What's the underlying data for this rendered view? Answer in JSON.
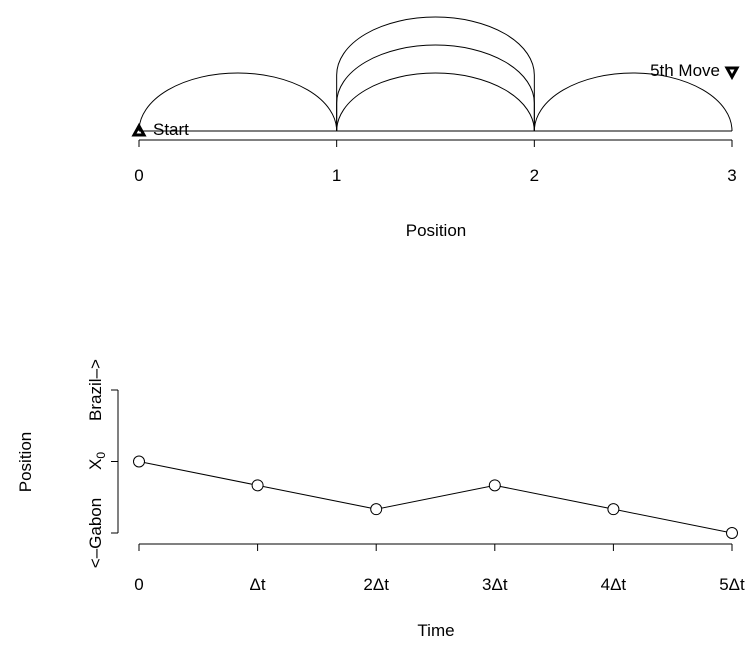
{
  "chart_data": [
    {
      "type": "line",
      "xlabel": "Position",
      "x_ticks": [
        "0",
        "1",
        "2",
        "3"
      ],
      "xlim": [
        0,
        3
      ],
      "jumps": [
        {
          "from": 0,
          "to": 1
        },
        {
          "from": 1,
          "to": 2
        },
        {
          "from": 2,
          "to": 1
        },
        {
          "from": 1,
          "to": 2
        },
        {
          "from": 2,
          "to": 3
        }
      ],
      "start": {
        "position": 0,
        "label": "Start",
        "marker": "up-triangle"
      },
      "end": {
        "position": 3,
        "label": "5th Move",
        "marker": "down-triangle"
      }
    },
    {
      "type": "line",
      "xlabel": "Time",
      "ylabel": "Position",
      "x_ticks": [
        "0",
        "Δt",
        "2Δt",
        "3Δt",
        "4Δt",
        "5Δt"
      ],
      "x": [
        0,
        1,
        2,
        3,
        4,
        5
      ],
      "y": [
        0,
        -1,
        -2,
        -1,
        -2,
        -3
      ],
      "ylim": [
        -3,
        3
      ],
      "y_ticks": [
        -3,
        0,
        3
      ],
      "y_tick_labels": {
        "low": "<–Gabon",
        "mid": "X",
        "mid_sub": "0",
        "high": "Brazil–>"
      },
      "marker": "open-circle"
    }
  ]
}
